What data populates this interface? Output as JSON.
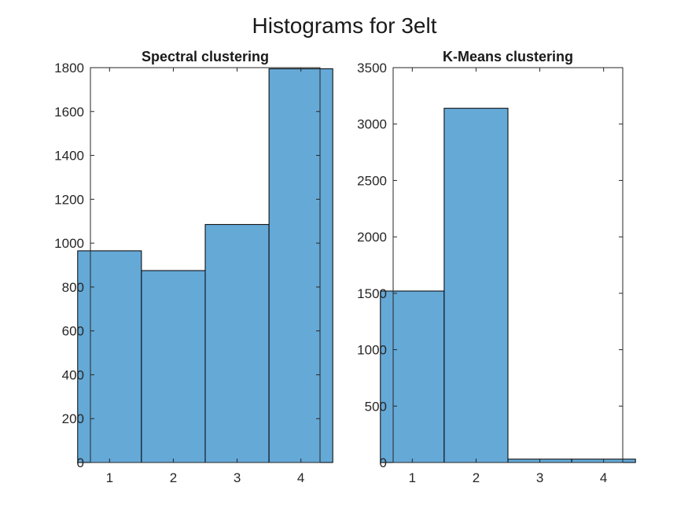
{
  "figure": {
    "title": "Histograms for 3elt"
  },
  "colors": {
    "bar_fill": "#65a9d7",
    "bar_edge": "#000000",
    "axis": "#262626"
  },
  "chart_data": [
    {
      "type": "bar",
      "title": "Spectral clustering",
      "xlabel": "",
      "ylabel": "",
      "categories": [
        "1",
        "2",
        "3",
        "4"
      ],
      "values": [
        965,
        875,
        1085,
        1795
      ],
      "xlim": [
        0.7,
        4.3
      ],
      "ylim": [
        0,
        1800
      ],
      "yticks": [
        0,
        200,
        400,
        600,
        800,
        1000,
        1200,
        1400,
        1600,
        1800
      ],
      "xticks": [
        1,
        2,
        3,
        4
      ],
      "grid": false,
      "box": true
    },
    {
      "type": "bar",
      "title": "K-Means clustering",
      "xlabel": "",
      "ylabel": "",
      "categories": [
        "1",
        "2",
        "3",
        "4"
      ],
      "values": [
        1520,
        3140,
        30,
        30
      ],
      "xlim": [
        0.7,
        4.3
      ],
      "ylim": [
        0,
        3500
      ],
      "yticks": [
        0,
        500,
        1000,
        1500,
        2000,
        2500,
        3000,
        3500
      ],
      "xticks": [
        1,
        2,
        3,
        4
      ],
      "grid": false,
      "box": true
    }
  ]
}
